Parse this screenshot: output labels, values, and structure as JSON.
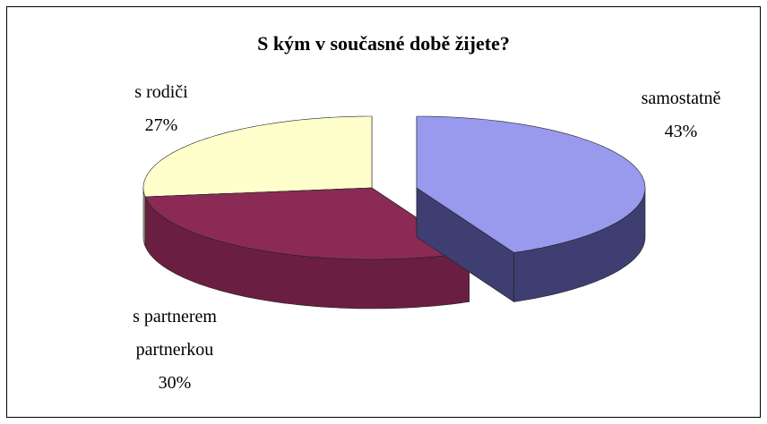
{
  "chart_data": {
    "type": "pie",
    "title": "S kým v současné době žijete?",
    "categories": [
      "samostatně",
      "s partnerem partnerkou",
      "s rodiči"
    ],
    "values": [
      43,
      30,
      27
    ],
    "value_labels": [
      "43%",
      "30%",
      "27%"
    ],
    "colors": [
      "#9999ee",
      "#8b2a55",
      "#ffffcc"
    ],
    "side_colors": [
      "#3e3e72",
      "#6a1f42",
      "#b8b888"
    ],
    "three_d": true
  }
}
